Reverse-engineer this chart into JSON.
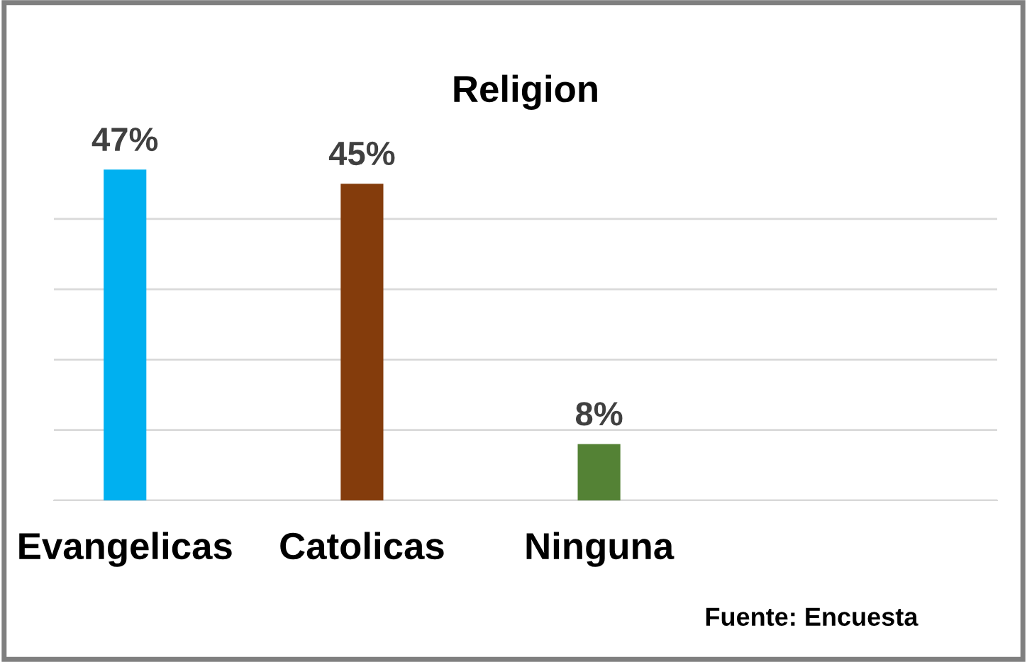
{
  "chart_data": {
    "type": "bar",
    "title": "Religion",
    "categories": [
      "Evangelicas",
      "Catolicas",
      "Ninguna"
    ],
    "values": [
      47,
      45,
      8
    ],
    "colors": [
      "#00b0f0",
      "#843c0c",
      "#548235"
    ],
    "value_labels": [
      "47%",
      "45%",
      "8%"
    ],
    "yticks": [
      {
        "value": 0,
        "label": null
      },
      {
        "value": 10,
        "label": null
      },
      {
        "value": 20,
        "label": null
      },
      {
        "value": 30,
        "label": null
      },
      {
        "value": 40,
        "label": null
      }
    ],
    "grid": "y",
    "legend": false,
    "tick_labels": "x",
    "annotations": [
      "Fuente: Encuesta"
    ]
  }
}
